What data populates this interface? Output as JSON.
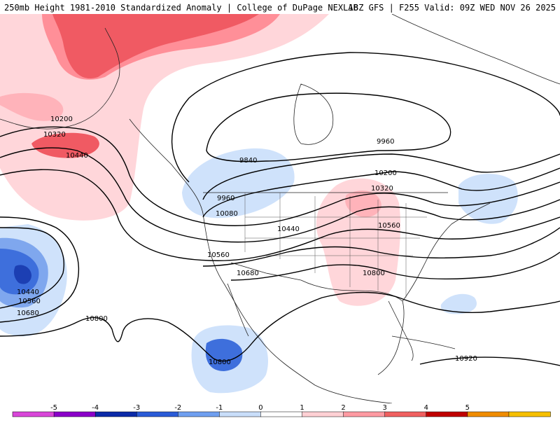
{
  "header": {
    "left_title": "250mb Height 1981-2010 Standardized Anomaly | College of DuPage NEXLAB",
    "right_title": "18Z GFS | F255 Valid: 09Z WED NOV 26 2025"
  },
  "contour_labels": [
    {
      "id": "lbl-10200-alaska",
      "text": "10200"
    },
    {
      "id": "lbl-10320-alaska",
      "text": "10320"
    },
    {
      "id": "lbl-10440-alaska",
      "text": "10440"
    },
    {
      "id": "lbl-9840",
      "text": "9840"
    },
    {
      "id": "lbl-9960-west",
      "text": "9960"
    },
    {
      "id": "lbl-10080-west",
      "text": "10080"
    },
    {
      "id": "lbl-9960-east",
      "text": "9960"
    },
    {
      "id": "lbl-10200-east",
      "text": "10200"
    },
    {
      "id": "lbl-10320-east",
      "text": "10320"
    },
    {
      "id": "lbl-10440-central",
      "text": "10440"
    },
    {
      "id": "lbl-10560-east",
      "text": "10560"
    },
    {
      "id": "lbl-10560-west",
      "text": "10560"
    },
    {
      "id": "lbl-10680-west",
      "text": "10680"
    },
    {
      "id": "lbl-10800-southeast",
      "text": "10800"
    },
    {
      "id": "lbl-10440-pacific",
      "text": "10440"
    },
    {
      "id": "lbl-10560-pacific",
      "text": "10560"
    },
    {
      "id": "lbl-10680-pacific",
      "text": "10680"
    },
    {
      "id": "lbl-10800-pacific",
      "text": "10800"
    },
    {
      "id": "lbl-10800-mexico",
      "text": "10800"
    },
    {
      "id": "lbl-10920",
      "text": "10920"
    }
  ],
  "colorbar": {
    "ticks": [
      "-5",
      "-4",
      "-3",
      "-2",
      "-1",
      "0",
      "1",
      "2",
      "3",
      "4",
      "5"
    ],
    "colors": [
      "#d946d9",
      "#8b00c9",
      "#0b2aa8",
      "#2a5bd7",
      "#6f9ff0",
      "#c9defa",
      "#ffffff",
      "#ffd0d4",
      "#ff9aa2",
      "#f06060",
      "#c00000",
      "#f08c00",
      "#f7c000"
    ]
  },
  "anomaly_colors": {
    "light_red": "#ffd6da",
    "mid_red": "#ff8f98",
    "red": "#f05a63",
    "light_blue": "#cfe2fb",
    "mid_blue": "#7fa7ee",
    "blue": "#3e6fdc",
    "dark_blue": "#1c3fb3"
  }
}
